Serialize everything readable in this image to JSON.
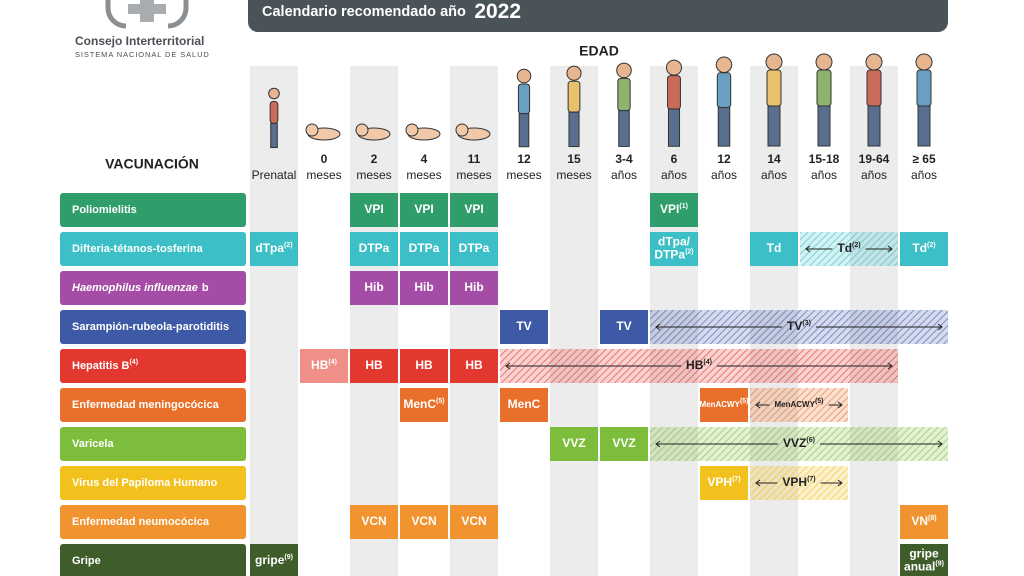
{
  "logo": {
    "name": "Consejo Interterritorial",
    "subtitle": "SISTEMA NACIONAL DE SALUD"
  },
  "header": {
    "title": "Calendario recomendado año",
    "year": "2022"
  },
  "age_heading": "EDAD",
  "vaccine_heading": "VACUNACIÓN",
  "ages": [
    {
      "lines": [
        "Prenatal"
      ]
    },
    {
      "lines": [
        "0",
        "meses"
      ]
    },
    {
      "lines": [
        "2",
        "meses"
      ]
    },
    {
      "lines": [
        "4",
        "meses"
      ]
    },
    {
      "lines": [
        "11",
        "meses"
      ]
    },
    {
      "lines": [
        "12",
        "meses"
      ]
    },
    {
      "lines": [
        "15",
        "meses"
      ]
    },
    {
      "lines": [
        "3-4",
        "años"
      ]
    },
    {
      "lines": [
        "6",
        "años"
      ]
    },
    {
      "lines": [
        "12",
        "años"
      ]
    },
    {
      "lines": [
        "14",
        "años"
      ]
    },
    {
      "lines": [
        "15-18",
        "años"
      ]
    },
    {
      "lines": [
        "19-64",
        "años"
      ]
    },
    {
      "lines": [
        "≥ 65",
        "años"
      ]
    }
  ],
  "rows": [
    {
      "label": "Poliomielitis",
      "color": "#2f9e6b",
      "cells": [
        null,
        null,
        {
          "lines": [
            "VPI"
          ]
        },
        {
          "lines": [
            "VPI"
          ]
        },
        {
          "lines": [
            "VPI"
          ]
        },
        null,
        null,
        null,
        {
          "lines": [
            "VPI"
          ],
          "note": "(1)"
        },
        null,
        null,
        null,
        null,
        null
      ]
    },
    {
      "label": "Difteria-tétanos-tosferina",
      "color": "#3cbfc6",
      "cells": [
        {
          "lines": [
            "dTpa"
          ],
          "note": "(2)"
        },
        null,
        {
          "lines": [
            "DTPa"
          ]
        },
        {
          "lines": [
            "DTPa"
          ]
        },
        {
          "lines": [
            "DTPa"
          ]
        },
        null,
        null,
        null,
        {
          "lines": [
            "dTpa/",
            "DTPa"
          ],
          "note": "(2)"
        },
        null,
        {
          "lines": [
            "Td"
          ]
        },
        {
          "lines": [
            "Td"
          ],
          "note": "(2)",
          "span": 2,
          "hatched": true
        },
        null,
        {
          "lines": [
            "Td"
          ],
          "note": "(2)"
        }
      ]
    },
    {
      "label": "Haemophilus influenzae",
      "label_suffix": "b",
      "italic": true,
      "color": "#a54da6",
      "cells": [
        null,
        null,
        {
          "lines": [
            "Hib"
          ]
        },
        {
          "lines": [
            "Hib"
          ]
        },
        {
          "lines": [
            "Hib"
          ]
        },
        null,
        null,
        null,
        null,
        null,
        null,
        null,
        null,
        null
      ]
    },
    {
      "label": "Sarampión-rubeola-parotiditis",
      "color": "#3e5aa6",
      "cells": [
        null,
        null,
        null,
        null,
        null,
        {
          "lines": [
            "TV"
          ]
        },
        null,
        {
          "lines": [
            "TV"
          ]
        },
        {
          "lines": [
            "TV"
          ],
          "note": "(3)",
          "span": 6,
          "hatched": true
        },
        null,
        null,
        null,
        null,
        null
      ]
    },
    {
      "label": "Hepatitis B",
      "label_note": "(4)",
      "color": "#e2382f",
      "cells": [
        null,
        {
          "lines": [
            "HB"
          ],
          "note": "(4)",
          "light": true
        },
        {
          "lines": [
            "HB"
          ]
        },
        {
          "lines": [
            "HB"
          ]
        },
        {
          "lines": [
            "HB"
          ]
        },
        {
          "lines": [
            "HB"
          ],
          "note": "(4)",
          "span": 8,
          "hatched": true
        },
        null,
        null,
        null,
        null,
        null,
        null,
        null,
        null
      ]
    },
    {
      "label": "Enfermedad meningocócica",
      "color": "#e8702a",
      "cells": [
        null,
        null,
        null,
        {
          "lines": [
            "MenC"
          ],
          "note": "(5)"
        },
        null,
        {
          "lines": [
            "MenC"
          ]
        },
        null,
        null,
        null,
        {
          "lines": [
            "MenACWY"
          ],
          "note": "(5)",
          "small": true
        },
        {
          "lines": [
            "MenACWY"
          ],
          "note": "(5)",
          "span": 2,
          "hatched": true,
          "small": true
        },
        null,
        null,
        null
      ]
    },
    {
      "label": "Varicela",
      "color": "#7cbe3c",
      "cells": [
        null,
        null,
        null,
        null,
        null,
        null,
        {
          "lines": [
            "VVZ"
          ]
        },
        {
          "lines": [
            "VVZ"
          ]
        },
        {
          "lines": [
            "VVZ"
          ],
          "note": "(6)",
          "span": 6,
          "hatched": true
        },
        null,
        null,
        null,
        null,
        null
      ]
    },
    {
      "label": "Virus del Papiloma Humano",
      "color": "#f3c11d",
      "cells": [
        null,
        null,
        null,
        null,
        null,
        null,
        null,
        null,
        null,
        {
          "lines": [
            "VPH"
          ],
          "note": "(7)"
        },
        {
          "lines": [
            "VPH"
          ],
          "note": "(7)",
          "span": 2,
          "hatched": true
        },
        null,
        null,
        null
      ]
    },
    {
      "label": "Enfermedad neumocócica",
      "color": "#f1932f",
      "cells": [
        null,
        null,
        {
          "lines": [
            "VCN"
          ]
        },
        {
          "lines": [
            "VCN"
          ]
        },
        {
          "lines": [
            "VCN"
          ]
        },
        null,
        null,
        null,
        null,
        null,
        null,
        null,
        null,
        {
          "lines": [
            "VN"
          ],
          "note": "(8)"
        }
      ]
    },
    {
      "label": "Gripe",
      "color": "#3f5d2b",
      "cells": [
        {
          "lines": [
            "gripe"
          ],
          "note": "(9)"
        },
        null,
        null,
        null,
        null,
        null,
        null,
        null,
        null,
        null,
        null,
        null,
        null,
        {
          "lines": [
            "gripe",
            "anual"
          ],
          "note": "(9)"
        }
      ]
    }
  ]
}
